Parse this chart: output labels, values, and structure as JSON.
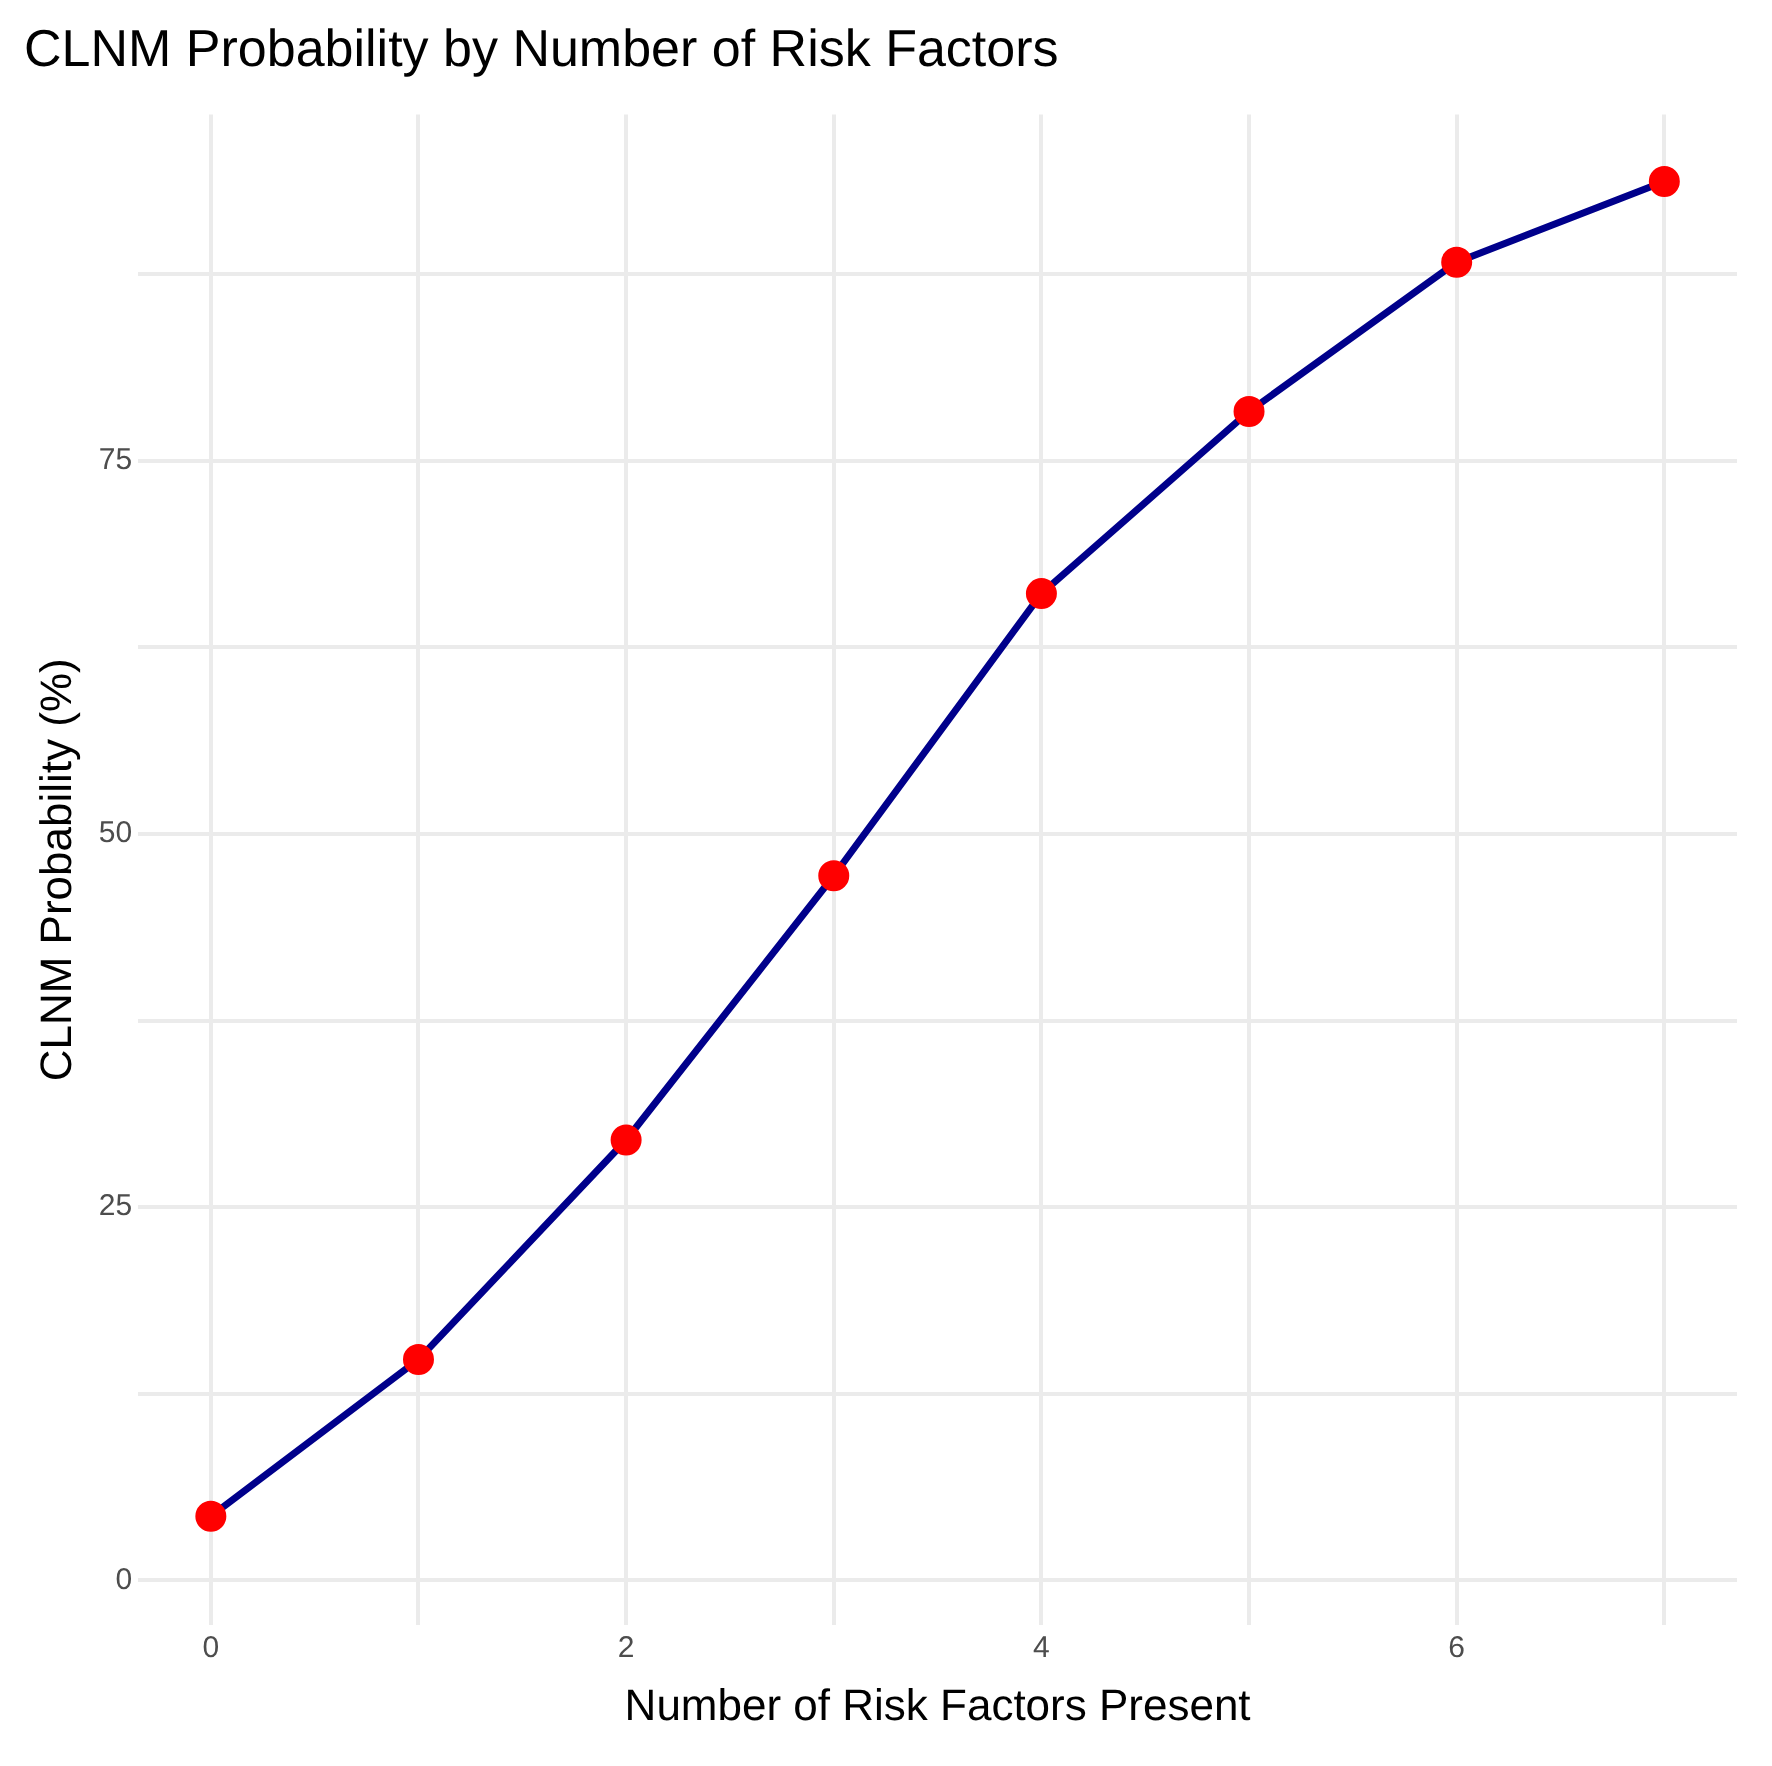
{
  "chart_data": {
    "type": "line",
    "title": "CLNM Probability by Number of Risk Factors",
    "xlabel": "Number of Risk Factors Present",
    "ylabel": "CLNM Probability (%)",
    "x": [
      0,
      1,
      2,
      3,
      4,
      5,
      6,
      7
    ],
    "series": [
      {
        "color": "#00008b",
        "colors": [
          "#ff0000",
          "#ff0000",
          "#ff0000",
          "#ff0000",
          "#ff0000",
          "#ff0000",
          "#ff0000",
          "#ff0000"
        ],
        "values": [
          4.3,
          14.8,
          29.5,
          47.2,
          66.1,
          78.3,
          88.3,
          93.7
        ]
      }
    ],
    "marker": "circle",
    "line_style": "solid",
    "xlim": [
      -0.35,
      7.35
    ],
    "ylim": [
      -3,
      98.2
    ],
    "xticks": [
      0,
      {
        "value": 1,
        "label": null
      },
      2,
      {
        "value": 3,
        "label": null
      },
      4,
      {
        "value": 5,
        "label": null
      },
      6,
      {
        "value": 7,
        "label": null
      }
    ],
    "yticks": [
      0,
      {
        "value": 12.5,
        "label": null
      },
      25,
      {
        "value": 37.5,
        "label": null
      },
      50,
      {
        "value": 62.5,
        "label": null
      },
      75,
      {
        "value": 87.5,
        "label": null
      }
    ],
    "grid": true,
    "legend": false
  }
}
